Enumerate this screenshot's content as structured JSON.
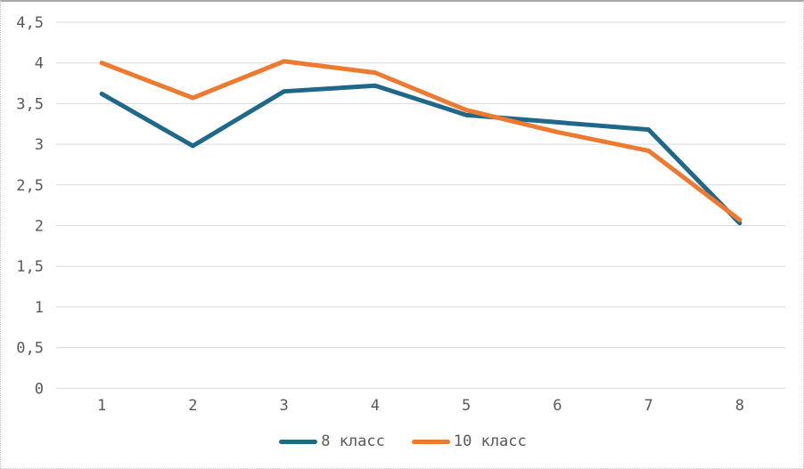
{
  "chart_data": {
    "type": "line",
    "title": "",
    "xlabel": "",
    "ylabel": "",
    "categories": [
      "1",
      "2",
      "3",
      "4",
      "5",
      "6",
      "7",
      "8"
    ],
    "series": [
      {
        "name": "8 класс",
        "color": "#20688A",
        "values": [
          3.62,
          2.98,
          3.65,
          3.72,
          3.36,
          3.27,
          3.18,
          2.03
        ]
      },
      {
        "name": "10 класс",
        "color": "#EC7A30",
        "values": [
          4.0,
          3.57,
          4.02,
          3.88,
          3.42,
          3.15,
          2.92,
          2.07
        ]
      }
    ],
    "ylim": [
      0,
      4.5
    ],
    "ytick_values": [
      0,
      0.5,
      1,
      1.5,
      2,
      2.5,
      3,
      3.5,
      4,
      4.5
    ],
    "ytick_labels": [
      "0",
      "0,5",
      "1",
      "1,5",
      "2",
      "2,5",
      "3",
      "3,5",
      "4",
      "4,5"
    ],
    "decimal_separator": ",",
    "grid": true,
    "legend_position": "bottom"
  },
  "style": {
    "grid_color": "#d9d9d9",
    "axis_line_color": "#d9d9d9",
    "tick_label_color": "#595959",
    "background": "#ffffff",
    "frame_color": "#a9a9a9",
    "line_width": 5
  }
}
